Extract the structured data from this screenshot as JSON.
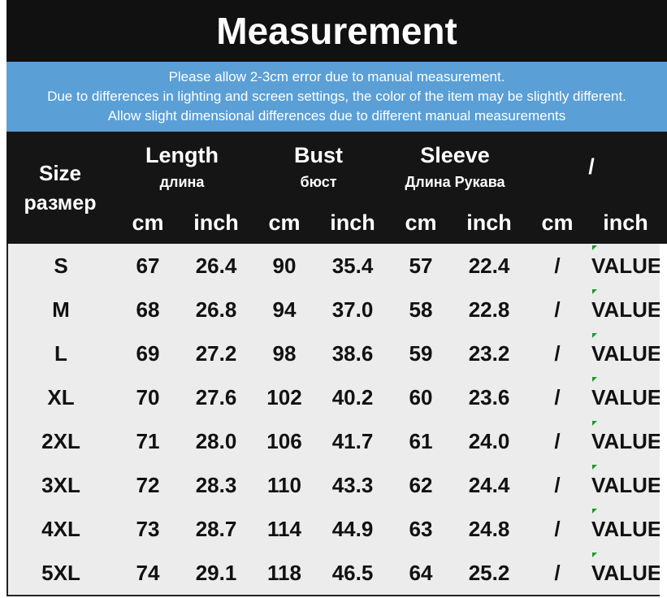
{
  "title": "Measurement",
  "notes": [
    "Please allow 2-3cm error due to manual measurement.",
    "Due to differences in lighting and screen settings, the color of the item may be slightly different.",
    "Allow slight dimensional differences due to different manual measurements"
  ],
  "header": {
    "size": {
      "label": "Size",
      "sub": "размер"
    },
    "groups": [
      {
        "label": "Length",
        "sub": "длина",
        "units": [
          "cm",
          "inch"
        ]
      },
      {
        "label": "Bust",
        "sub": "бюст",
        "units": [
          "cm",
          "inch"
        ]
      },
      {
        "label": "Sleeve",
        "sub": "Длина Рукава",
        "units": [
          "cm",
          "inch"
        ]
      },
      {
        "label": "/",
        "units": [
          "cm",
          "inch"
        ]
      }
    ]
  },
  "table": {
    "rows": [
      [
        "S",
        "67",
        "26.4",
        "90",
        "35.4",
        "57",
        "22.4",
        "/",
        "VALUE"
      ],
      [
        "M",
        "68",
        "26.8",
        "94",
        "37.0",
        "58",
        "22.8",
        "/",
        "VALUE"
      ],
      [
        "L",
        "69",
        "27.2",
        "98",
        "38.6",
        "59",
        "23.2",
        "/",
        "VALUE"
      ],
      [
        "XL",
        "70",
        "27.6",
        "102",
        "40.2",
        "60",
        "23.6",
        "/",
        "VALUE"
      ],
      [
        "2XL",
        "71",
        "28.0",
        "106",
        "41.7",
        "61",
        "24.0",
        "/",
        "VALUE"
      ],
      [
        "3XL",
        "72",
        "28.3",
        "110",
        "43.3",
        "62",
        "24.4",
        "/",
        "VALUE"
      ],
      [
        "4XL",
        "73",
        "28.7",
        "114",
        "44.9",
        "63",
        "24.8",
        "/",
        "VALUE"
      ],
      [
        "5XL",
        "74",
        "29.1",
        "118",
        "46.5",
        "64",
        "25.2",
        "/",
        "VALUE"
      ]
    ]
  }
}
